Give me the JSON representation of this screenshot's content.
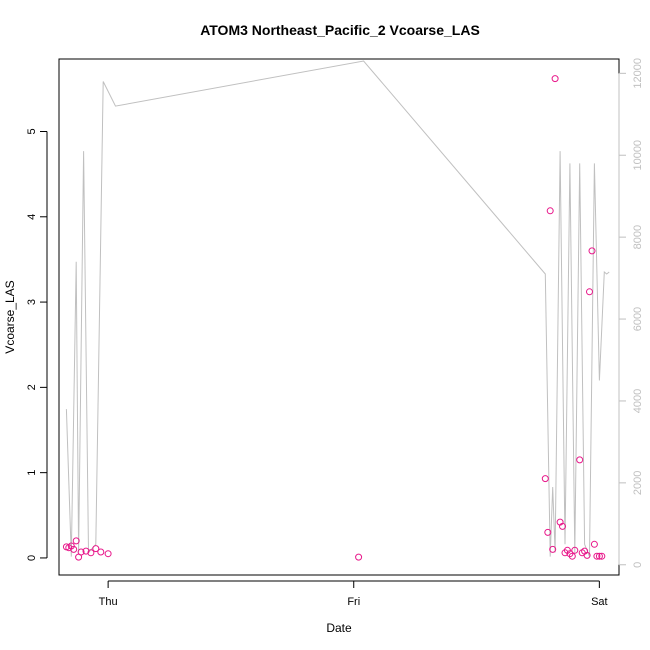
{
  "chart_data": {
    "type": "scatter",
    "title": "ATOM3 Northeast_Pacific_2 Vcoarse_LAS",
    "xlabel": "Date",
    "ylabel": "Vcoarse_LAS",
    "x_tick_labels": [
      "Thu",
      "Fri",
      "Sat"
    ],
    "x_ticks": [
      1.0,
      2.0,
      3.0
    ],
    "xlim": [
      0.8,
      3.08
    ],
    "ylim": [
      -0.2,
      5.85
    ],
    "y_ticks": [
      0,
      1,
      2,
      3,
      4,
      5
    ],
    "y2lim": [
      -250,
      12350
    ],
    "y2_ticks": [
      0,
      2000,
      4000,
      6000,
      8000,
      10000,
      12000
    ],
    "point_color": "#e8178a",
    "line_color": "#c0c0c0",
    "series": [
      {
        "role": "points",
        "x": [
          0.83,
          0.84,
          0.85,
          0.86,
          0.87,
          0.88,
          0.89,
          0.91,
          0.93,
          0.95,
          0.97,
          1.0,
          2.02,
          2.78,
          2.79,
          2.8,
          2.81,
          2.82,
          2.84,
          2.85,
          2.86,
          2.87,
          2.88,
          2.89,
          2.9,
          2.92,
          2.93,
          2.94,
          2.95,
          2.96,
          2.97,
          2.98,
          2.99,
          3.0,
          3.01
        ],
        "y": [
          0.13,
          0.12,
          0.14,
          0.1,
          0.2,
          0.01,
          0.07,
          0.08,
          0.06,
          0.11,
          0.07,
          0.05,
          0.01,
          0.93,
          0.3,
          4.07,
          0.1,
          5.62,
          0.42,
          0.37,
          0.06,
          0.09,
          0.05,
          0.02,
          0.09,
          1.15,
          0.06,
          0.08,
          0.03,
          3.12,
          3.6,
          0.16,
          0.02,
          0.02,
          0.02
        ]
      },
      {
        "role": "line",
        "axis": "right",
        "x": [
          0.83,
          0.85,
          0.87,
          0.88,
          0.9,
          0.92,
          0.95,
          0.98,
          1.03,
          2.04,
          2.78,
          2.8,
          2.81,
          2.82,
          2.84,
          2.86,
          2.88,
          2.9,
          2.92,
          2.94,
          2.96,
          2.98,
          3.0,
          3.02,
          3.03,
          3.04
        ],
        "y": [
          3800,
          200,
          7400,
          300,
          10100,
          300,
          500,
          11800,
          11200,
          12300,
          7100,
          200,
          1900,
          300,
          10100,
          500,
          9800,
          300,
          9800,
          500,
          200,
          9800,
          4500,
          7150,
          7100,
          7150
        ]
      }
    ]
  }
}
